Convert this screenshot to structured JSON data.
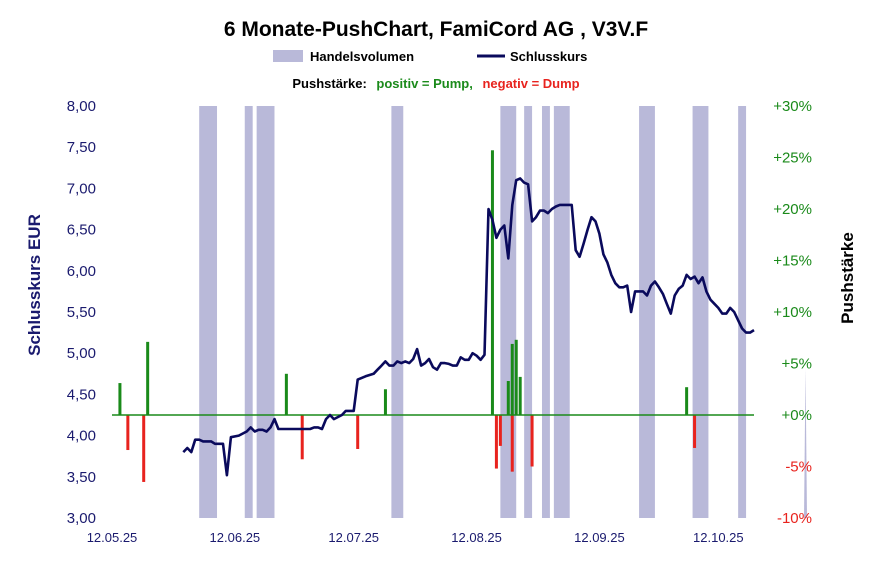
{
  "chart_data": {
    "type": "line",
    "title": "6 Monate-PushChart, FamiCord  AG , V3V.F",
    "legend": {
      "volume_label": "Handelsvolumen",
      "close_label": "Schlusskurs",
      "push_title": "Pushstärke:",
      "push_positive": "positiv = Pump,",
      "push_negative": "negativ = Dump",
      "colors": {
        "volume": "#b9b9d9",
        "close": "#0a0a5c",
        "positive": "#1a8a1a",
        "negative": "#e8231e"
      }
    },
    "y_left": {
      "label": "Schlusskurs EUR",
      "range": [
        3.0,
        8.0
      ],
      "ticks": [
        "8,00",
        "7,50",
        "7,00",
        "6,50",
        "6,00",
        "5,50",
        "5,00",
        "4,50",
        "4,00",
        "3,50",
        "3,00"
      ],
      "tick_values": [
        8.0,
        7.5,
        7.0,
        6.5,
        6.0,
        5.5,
        5.0,
        4.5,
        4.0,
        3.5,
        3.0
      ]
    },
    "y_right": {
      "label": "Pushstärke",
      "range": [
        -10,
        30
      ],
      "ticks": [
        "+30%",
        "+25%",
        "+20%",
        "+15%",
        "+10%",
        "+5%",
        "+0%",
        "-5%",
        "-10%"
      ],
      "tick_values": [
        30,
        25,
        20,
        15,
        10,
        5,
        0,
        -5,
        -10
      ]
    },
    "x_axis": {
      "range_days": [
        0,
        162
      ],
      "ticks": [
        "12.05.25",
        "12.06.25",
        "12.07.25",
        "12.08.25",
        "12.09.25",
        "12.10.25"
      ],
      "tick_days": [
        0,
        31,
        61,
        92,
        123,
        153
      ]
    },
    "volume_bands": [
      [
        22,
        26.5
      ],
      [
        33.5,
        35.5
      ],
      [
        36.5,
        41
      ],
      [
        70.5,
        73.5
      ],
      [
        98,
        102
      ],
      [
        104,
        106
      ],
      [
        108.5,
        110.5
      ],
      [
        111.5,
        115.5
      ],
      [
        133,
        137
      ],
      [
        146.5,
        150.5
      ],
      [
        158,
        160
      ]
    ],
    "volume_spike": {
      "x": 175,
      "top_pct": 4.5
    },
    "close_series": {
      "name": "Schlusskurs",
      "x": [
        18,
        19,
        20,
        21,
        22,
        23,
        25,
        26,
        28,
        29,
        30,
        32,
        34,
        35,
        36,
        37,
        38,
        39,
        40,
        41,
        42,
        43,
        46,
        47,
        50,
        51,
        52,
        53,
        54,
        55,
        56,
        58,
        59,
        60,
        61,
        62,
        63,
        64,
        66,
        67,
        68,
        69,
        70,
        71,
        72,
        73,
        74,
        75,
        76,
        77,
        78,
        79,
        80,
        81,
        82,
        83,
        84,
        85,
        86,
        87,
        88,
        89,
        90,
        91,
        92,
        93,
        94,
        95,
        96,
        97,
        98,
        99,
        100,
        101,
        102,
        103,
        104,
        105,
        106,
        107,
        108,
        109,
        110,
        111,
        112,
        113,
        114,
        115,
        116,
        117,
        118,
        119,
        120,
        121,
        122,
        123,
        124,
        125,
        126,
        127,
        128,
        129,
        130,
        131,
        132,
        133,
        134,
        135,
        136,
        137,
        138,
        139,
        140,
        141,
        142,
        143,
        144,
        145,
        146,
        147,
        148,
        149,
        150,
        151,
        152,
        153,
        154,
        155,
        156,
        157,
        158,
        159,
        160,
        161,
        162
      ],
      "y": [
        3.8,
        3.85,
        3.8,
        3.95,
        3.95,
        3.93,
        3.93,
        3.9,
        3.9,
        3.52,
        3.98,
        4.0,
        4.05,
        4.1,
        4.05,
        4.07,
        4.07,
        4.05,
        4.1,
        4.2,
        4.08,
        4.08,
        4.08,
        4.08,
        4.08,
        4.1,
        4.1,
        4.08,
        4.2,
        4.25,
        4.2,
        4.25,
        4.3,
        4.3,
        4.3,
        4.68,
        4.7,
        4.72,
        4.75,
        4.8,
        4.85,
        4.9,
        4.85,
        4.85,
        4.9,
        4.88,
        4.9,
        4.88,
        4.93,
        5.05,
        4.85,
        4.88,
        4.93,
        4.83,
        4.8,
        4.88,
        4.88,
        4.87,
        4.85,
        4.85,
        4.95,
        4.92,
        4.92,
        5.0,
        4.97,
        4.92,
        4.98,
        6.75,
        6.62,
        6.4,
        6.5,
        6.55,
        6.15,
        6.8,
        7.1,
        7.12,
        7.07,
        7.05,
        6.6,
        6.65,
        6.73,
        6.73,
        6.7,
        6.75,
        6.78,
        6.8,
        6.8,
        6.8,
        6.8,
        6.25,
        6.17,
        6.33,
        6.5,
        6.65,
        6.6,
        6.45,
        6.2,
        6.1,
        5.95,
        5.85,
        5.8,
        5.8,
        5.82,
        5.5,
        5.75,
        5.75,
        5.75,
        5.7,
        5.82,
        5.87,
        5.8,
        5.72,
        5.6,
        5.48,
        5.7,
        5.78,
        5.82,
        5.95,
        5.9,
        5.93,
        5.85,
        5.92,
        5.75,
        5.65,
        5.6,
        5.55,
        5.48,
        5.48,
        5.55,
        5.5,
        5.4,
        5.3,
        5.25,
        5.25,
        5.28
      ]
    },
    "push_series": {
      "positive": {
        "x": [
          2,
          9,
          44,
          69,
          96,
          100,
          101,
          102,
          103,
          145
        ],
        "y": [
          3.1,
          7.1,
          4.0,
          2.5,
          25.7,
          3.3,
          6.9,
          7.3,
          3.7,
          2.7
        ]
      },
      "negative": {
        "x": [
          4,
          8,
          48,
          62,
          97,
          98,
          101,
          106,
          147
        ],
        "y": [
          -3.4,
          -6.5,
          -4.3,
          -3.3,
          -5.2,
          -3.0,
          -5.5,
          -5.0,
          -3.2
        ]
      }
    }
  }
}
